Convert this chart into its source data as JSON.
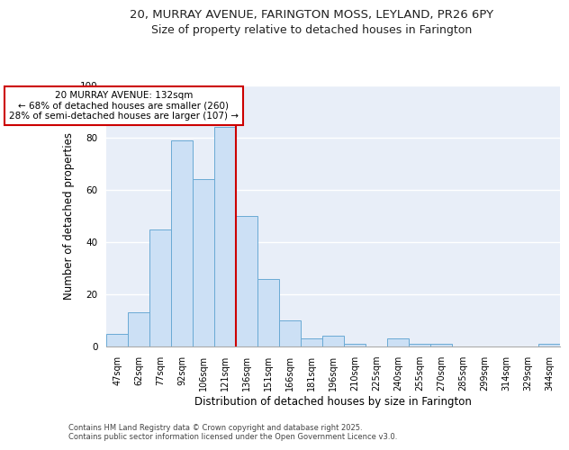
{
  "title_line1": "20, MURRAY AVENUE, FARINGTON MOSS, LEYLAND, PR26 6PY",
  "title_line2": "Size of property relative to detached houses in Farington",
  "xlabel": "Distribution of detached houses by size in Farington",
  "ylabel": "Number of detached properties",
  "categories": [
    "47sqm",
    "62sqm",
    "77sqm",
    "92sqm",
    "106sqm",
    "121sqm",
    "136sqm",
    "151sqm",
    "166sqm",
    "181sqm",
    "196sqm",
    "210sqm",
    "225sqm",
    "240sqm",
    "255sqm",
    "270sqm",
    "285sqm",
    "299sqm",
    "314sqm",
    "329sqm",
    "344sqm"
  ],
  "values": [
    5,
    13,
    45,
    79,
    64,
    84,
    50,
    26,
    10,
    3,
    4,
    1,
    0,
    3,
    1,
    1,
    0,
    0,
    0,
    0,
    1
  ],
  "bar_color": "#cce0f5",
  "bar_edge_color": "#6aaad4",
  "annotation_text": "20 MURRAY AVENUE: 132sqm\n← 68% of detached houses are smaller (260)\n28% of semi-detached houses are larger (107) →",
  "vline_position": 5.5,
  "vline_color": "#cc0000",
  "annotation_box_edge": "#cc0000",
  "ylim": [
    0,
    100
  ],
  "yticks": [
    0,
    20,
    40,
    60,
    80,
    100
  ],
  "background_color": "#e8eef8",
  "grid_color": "#ffffff",
  "footnote": "Contains HM Land Registry data © Crown copyright and database right 2025.\nContains public sector information licensed under the Open Government Licence v3.0.",
  "title_fontsize": 9.5,
  "subtitle_fontsize": 9,
  "axis_label_fontsize": 8.5,
  "tick_fontsize": 7,
  "annotation_fontsize": 7.5,
  "footnote_fontsize": 6
}
